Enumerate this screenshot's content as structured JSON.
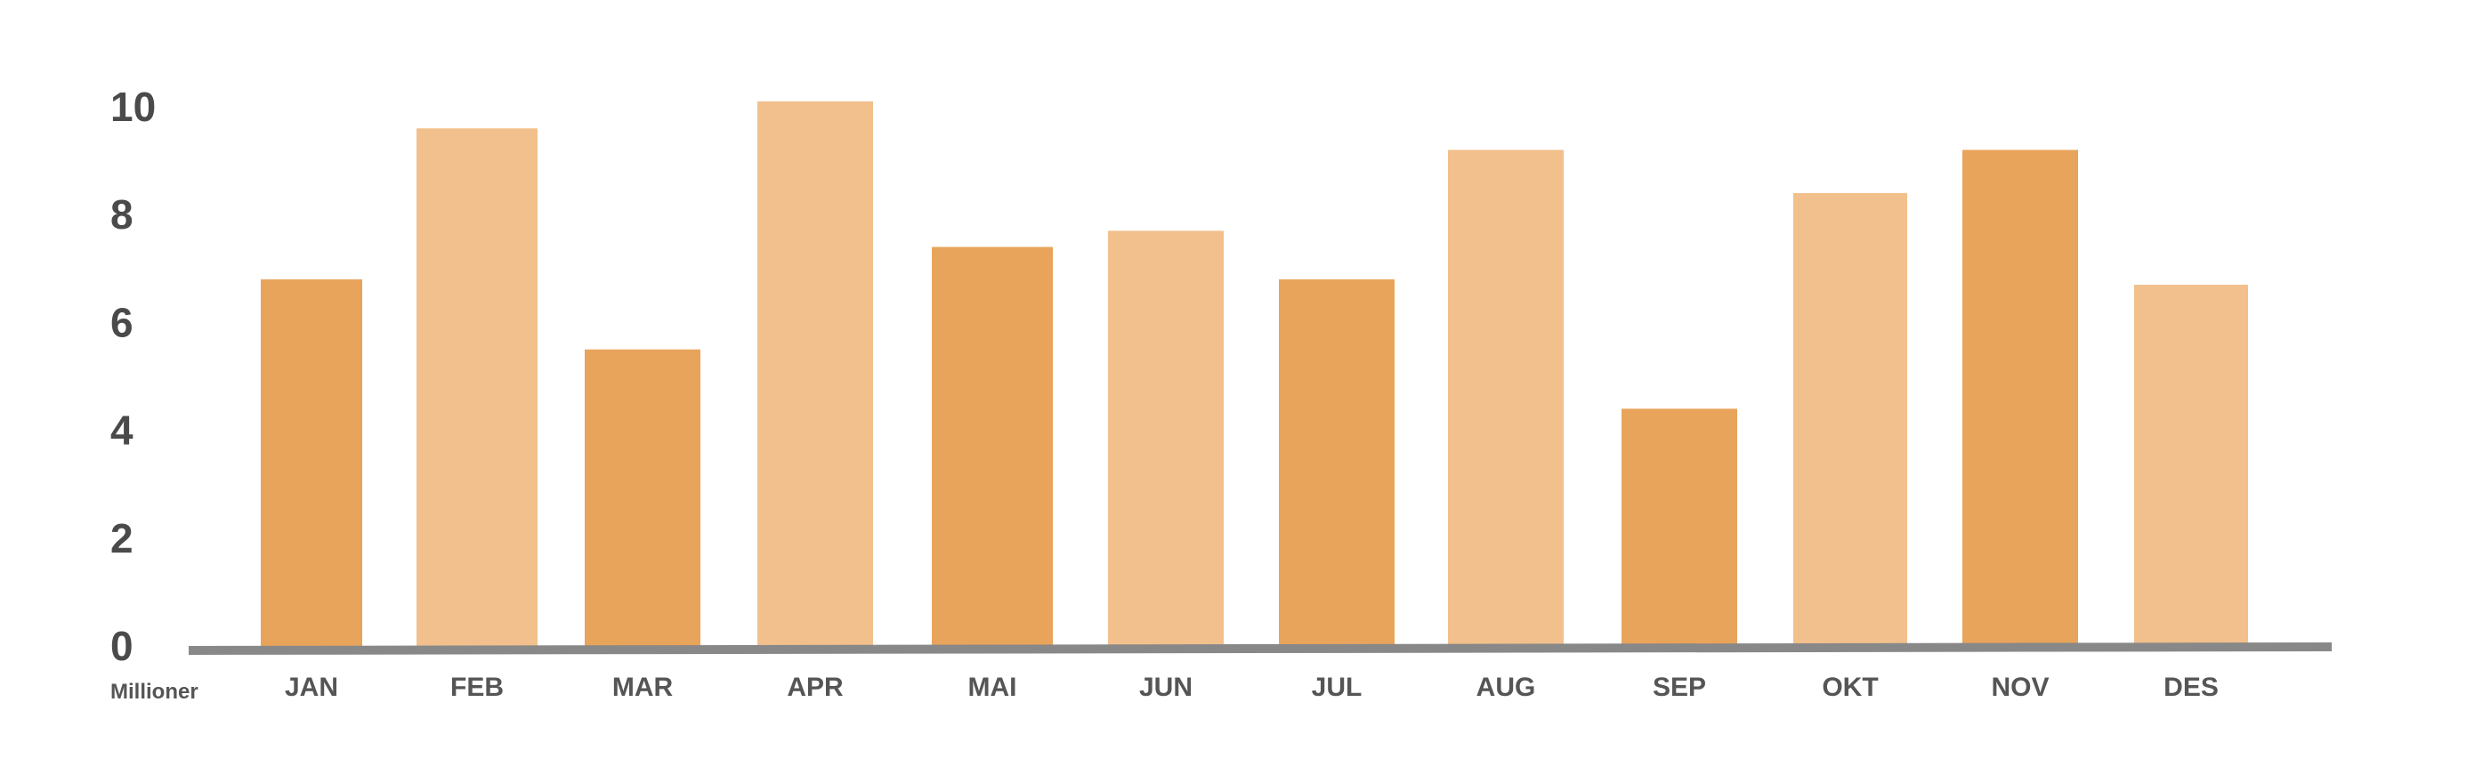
{
  "chart_data": {
    "type": "bar",
    "title": "",
    "xlabel": "",
    "ylabel": "Millioner",
    "ylim": [
      0,
      10
    ],
    "yticks": [
      0,
      2,
      4,
      6,
      8,
      10
    ],
    "grid": false,
    "categories": [
      "JAN",
      "FEB",
      "MAR",
      "APR",
      "MAI",
      "JUN",
      "JUL",
      "AUG",
      "SEP",
      "OKT",
      "NOV",
      "DES"
    ],
    "values": [
      6.8,
      9.6,
      5.5,
      10.1,
      7.4,
      7.7,
      6.8,
      9.2,
      4.4,
      8.4,
      9.2,
      6.7
    ],
    "bar_colors": [
      "#E9A45B",
      "#F2C08C",
      "#E9A45B",
      "#F2C08C",
      "#E9A45B",
      "#F2C08C",
      "#E9A45B",
      "#F2C08C",
      "#E9A45B",
      "#F2C08C",
      "#E9A45B",
      "#F2C08C"
    ],
    "axis_color": "#888888"
  }
}
